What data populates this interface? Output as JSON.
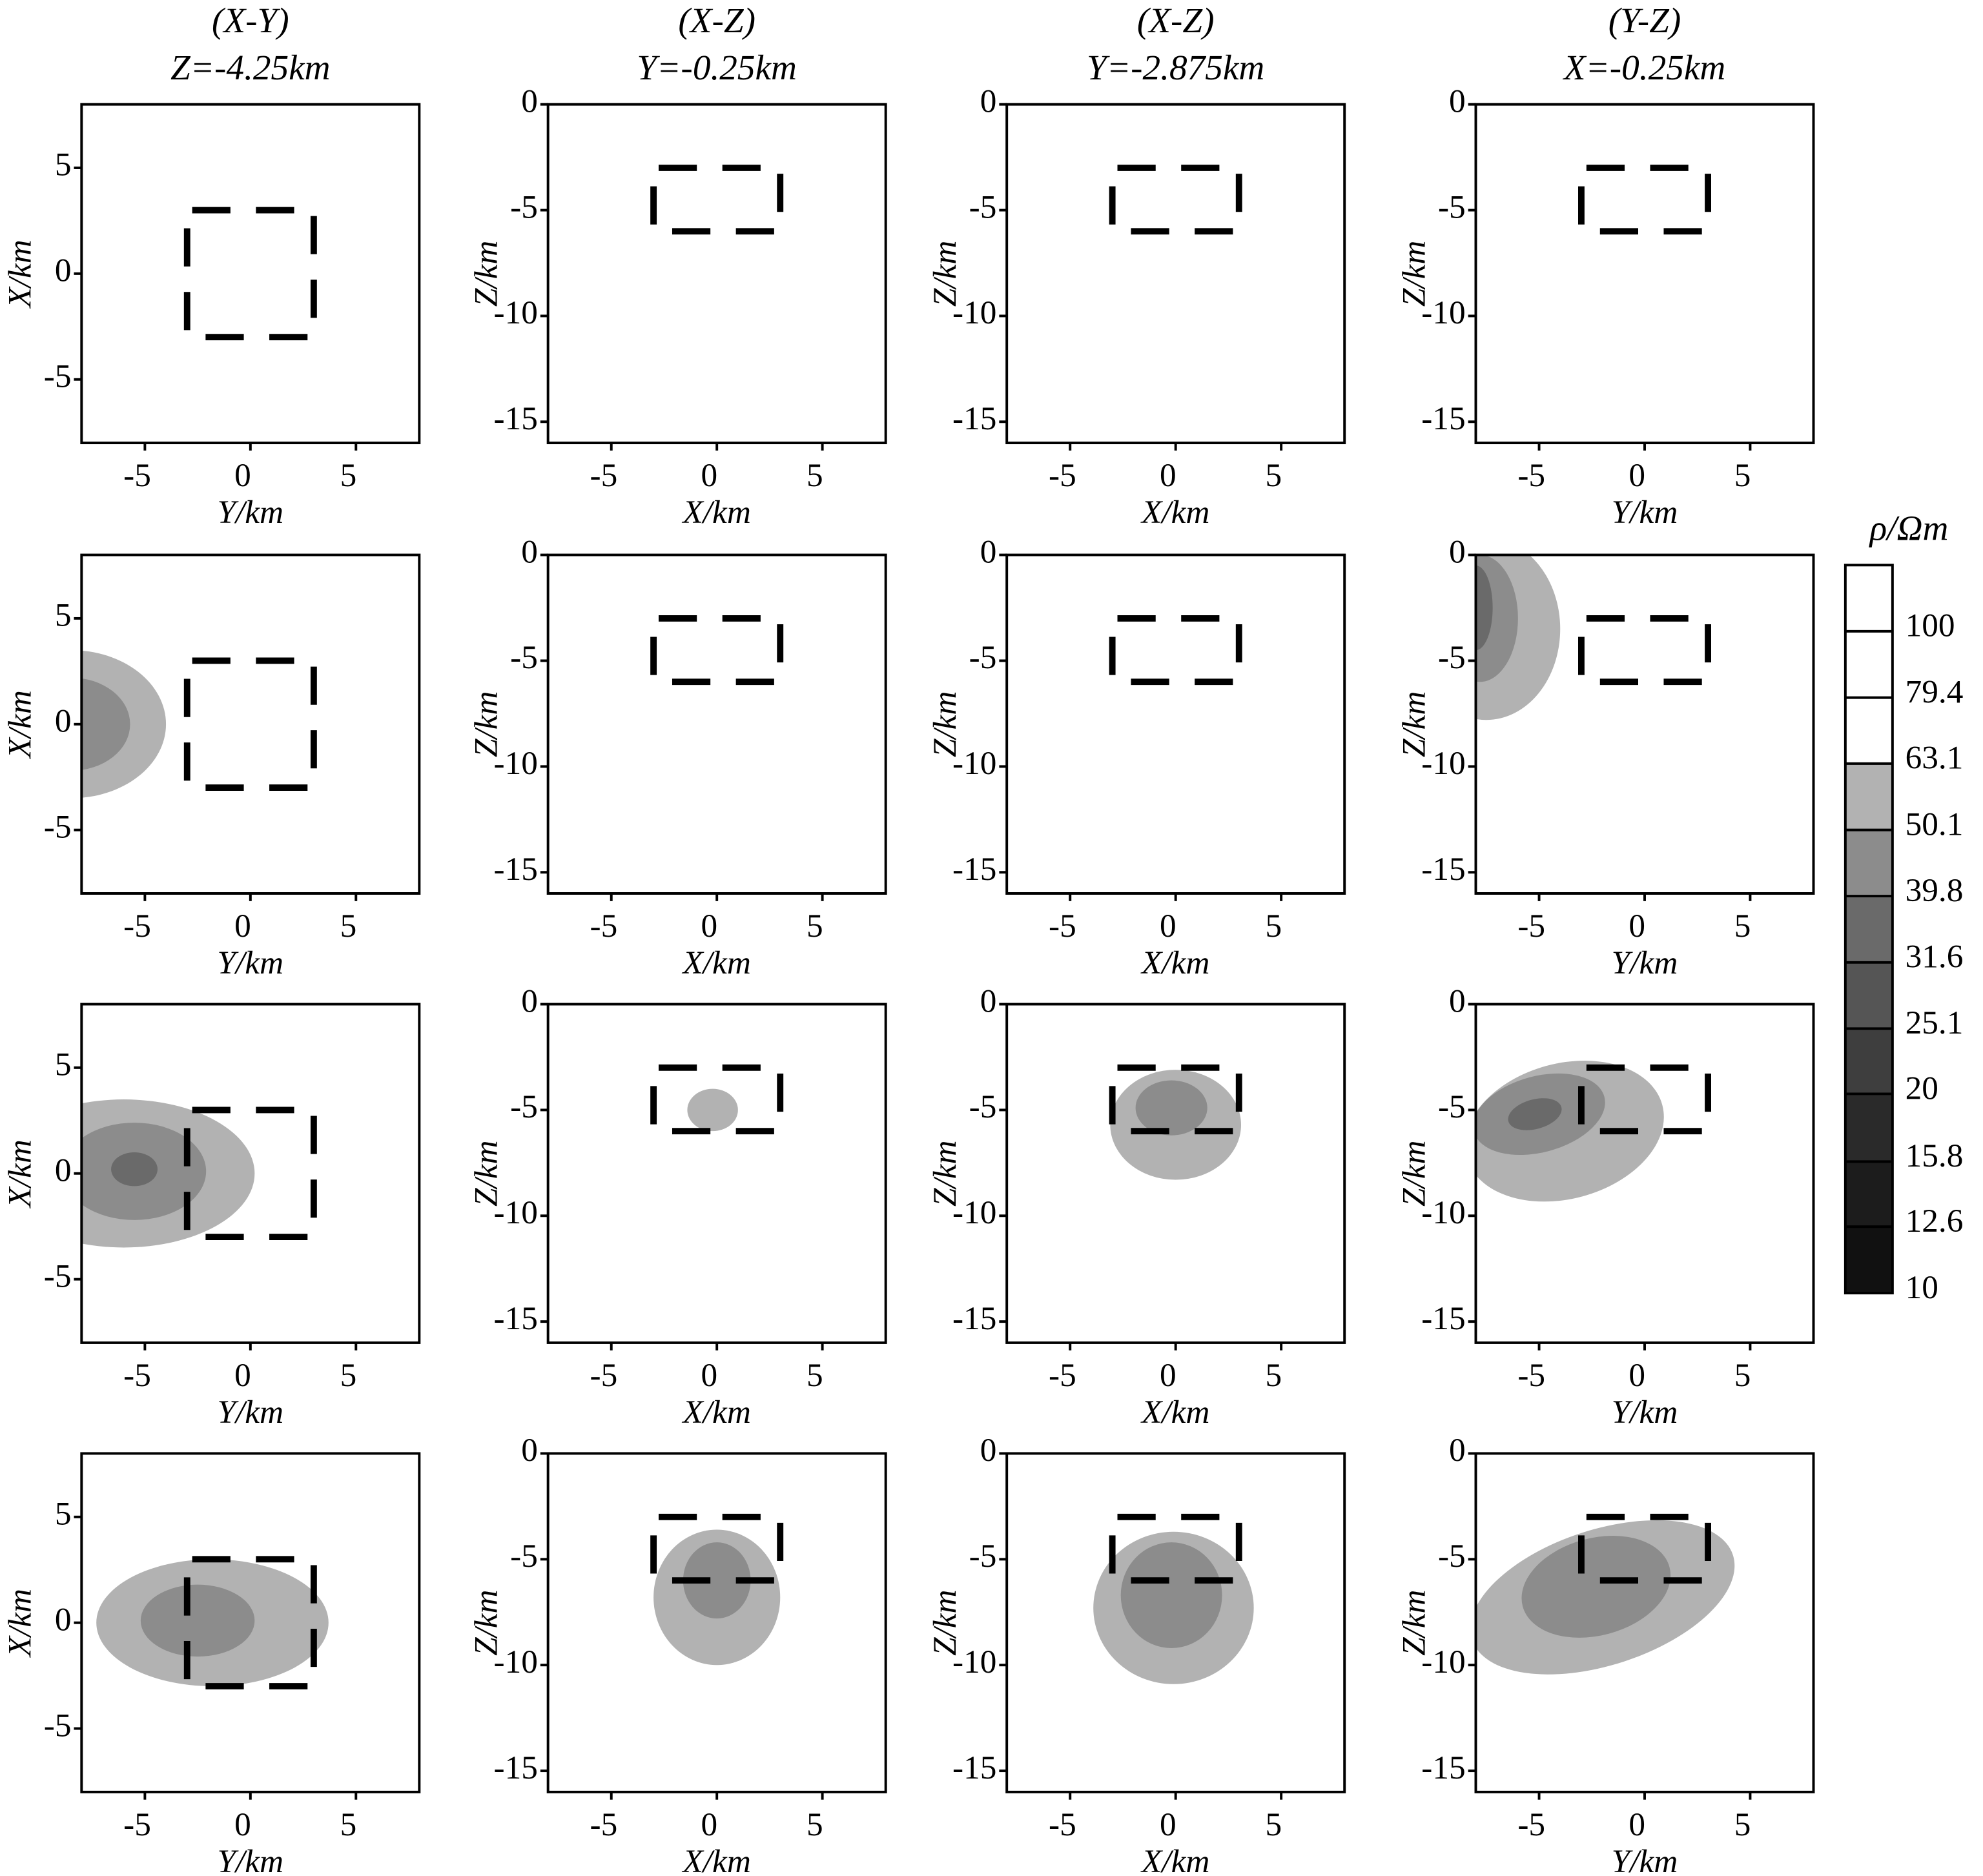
{
  "chart_data": [
    {
      "type": "contour",
      "title": "(X-Y)",
      "subtitle": "Z=-4.25km",
      "xlabel": "Y/km",
      "ylabel": "X/km",
      "xlim": [
        -8,
        8
      ],
      "ylim": [
        -8,
        8
      ],
      "xticks": [
        -5,
        0,
        5
      ],
      "yticks": [
        -5,
        0,
        5
      ],
      "outline": {
        "x": [
          -3,
          3
        ],
        "y": [
          -3,
          3
        ]
      },
      "contours": []
    },
    {
      "type": "contour",
      "title": "(X-Z)",
      "subtitle": "Y=-0.25km",
      "xlabel": "X/km",
      "ylabel": "Z/km",
      "xlim": [
        -8,
        8
      ],
      "ylim": [
        -16,
        0
      ],
      "xticks": [
        -5,
        0,
        5
      ],
      "yticks": [
        -15,
        -10,
        -5,
        0
      ],
      "outline": {
        "x": [
          -3,
          3
        ],
        "y": [
          -6,
          -3
        ]
      },
      "contours": []
    },
    {
      "type": "contour",
      "title": "(X-Z)",
      "subtitle": "Y=-2.875km",
      "xlabel": "X/km",
      "ylabel": "Z/km",
      "xlim": [
        -8,
        8
      ],
      "ylim": [
        -16,
        0
      ],
      "xticks": [
        -5,
        0,
        5
      ],
      "yticks": [
        -15,
        -10,
        -5,
        0
      ],
      "outline": {
        "x": [
          -3,
          3
        ],
        "y": [
          -6,
          -3
        ]
      },
      "contours": []
    },
    {
      "type": "contour",
      "title": "(Y-Z)",
      "subtitle": "X=-0.25km",
      "xlabel": "Y/km",
      "ylabel": "Z/km",
      "xlim": [
        -8,
        8
      ],
      "ylim": [
        -16,
        0
      ],
      "xticks": [
        -5,
        0,
        5
      ],
      "yticks": [
        -15,
        -10,
        -5,
        0
      ],
      "outline": {
        "x": [
          -3,
          3
        ],
        "y": [
          -6,
          -3
        ]
      },
      "contours": []
    },
    {
      "type": "contour",
      "xlabel": "Y/km",
      "ylabel": "X/km",
      "xlim": [
        -8,
        8
      ],
      "ylim": [
        -8,
        8
      ],
      "xticks": [
        -5,
        0,
        5
      ],
      "yticks": [
        -5,
        0,
        5
      ],
      "outline": {
        "x": [
          -3,
          3
        ],
        "y": [
          -3,
          3
        ]
      },
      "contours": [
        {
          "level": 63.1,
          "center": [
            -8.5,
            0
          ],
          "radii": [
            4.5,
            3.5
          ],
          "angle": 0
        },
        {
          "level": 50.1,
          "center": [
            -8.5,
            0
          ],
          "radii": [
            2.8,
            2.2
          ],
          "angle": 0
        }
      ]
    },
    {
      "type": "contour",
      "xlabel": "X/km",
      "ylabel": "Z/km",
      "xlim": [
        -8,
        8
      ],
      "ylim": [
        -16,
        0
      ],
      "xticks": [
        -5,
        0,
        5
      ],
      "yticks": [
        -15,
        -10,
        -5,
        0
      ],
      "outline": {
        "x": [
          -3,
          3
        ],
        "y": [
          -6,
          -3
        ]
      },
      "contours": []
    },
    {
      "type": "contour",
      "xlabel": "X/km",
      "ylabel": "Z/km",
      "xlim": [
        -8,
        8
      ],
      "ylim": [
        -16,
        0
      ],
      "xticks": [
        -5,
        0,
        5
      ],
      "yticks": [
        -15,
        -10,
        -5,
        0
      ],
      "outline": {
        "x": [
          -3,
          3
        ],
        "y": [
          -6,
          -3
        ]
      },
      "contours": []
    },
    {
      "type": "contour",
      "xlabel": "Y/km",
      "ylabel": "Z/km",
      "xlim": [
        -8,
        8
      ],
      "ylim": [
        -16,
        0
      ],
      "xticks": [
        -5,
        0,
        5
      ],
      "yticks": [
        -15,
        -10,
        -5,
        0
      ],
      "outline": {
        "x": [
          -3,
          3
        ],
        "y": [
          -6,
          -3
        ]
      },
      "contours": [
        {
          "level": 63.1,
          "center": [
            -7.5,
            -3.5
          ],
          "radii": [
            3.5,
            4.3
          ],
          "angle": 0
        },
        {
          "level": 50.1,
          "center": [
            -7.8,
            -3
          ],
          "radii": [
            1.8,
            3
          ],
          "angle": 0
        },
        {
          "level": 39.8,
          "center": [
            -8,
            -2.5
          ],
          "radii": [
            0.8,
            2
          ],
          "angle": 0
        }
      ]
    },
    {
      "type": "contour",
      "xlabel": "Y/km",
      "ylabel": "X/km",
      "xlim": [
        -8,
        8
      ],
      "ylim": [
        -8,
        8
      ],
      "xticks": [
        -5,
        0,
        5
      ],
      "yticks": [
        -5,
        0,
        5
      ],
      "outline": {
        "x": [
          -3,
          3
        ],
        "y": [
          -3,
          3
        ]
      },
      "contours": [
        {
          "level": 63.1,
          "center": [
            -6,
            0
          ],
          "radii": [
            6.2,
            3.5
          ],
          "angle": 0
        },
        {
          "level": 50.1,
          "center": [
            -5.5,
            0.1
          ],
          "radii": [
            3.4,
            2.3
          ],
          "angle": 0
        },
        {
          "level": 39.8,
          "center": [
            -5.5,
            0.2
          ],
          "radii": [
            1.1,
            0.8
          ],
          "angle": 0
        }
      ]
    },
    {
      "type": "contour",
      "xlabel": "X/km",
      "ylabel": "Z/km",
      "xlim": [
        -8,
        8
      ],
      "ylim": [
        -16,
        0
      ],
      "xticks": [
        -5,
        0,
        5
      ],
      "yticks": [
        -15,
        -10,
        -5,
        0
      ],
      "outline": {
        "x": [
          -3,
          3
        ],
        "y": [
          -6,
          -3
        ]
      },
      "contours": [
        {
          "level": 63.1,
          "center": [
            -0.2,
            -5
          ],
          "radii": [
            1.2,
            1.0
          ],
          "angle": 0
        }
      ]
    },
    {
      "type": "contour",
      "xlabel": "X/km",
      "ylabel": "Z/km",
      "xlim": [
        -8,
        8
      ],
      "ylim": [
        -16,
        0
      ],
      "xticks": [
        -5,
        0,
        5
      ],
      "yticks": [
        -15,
        -10,
        -5,
        0
      ],
      "outline": {
        "x": [
          -3,
          3
        ],
        "y": [
          -6,
          -3
        ]
      },
      "contours": [
        {
          "level": 63.1,
          "center": [
            0,
            -5.7
          ],
          "radii": [
            3.1,
            2.6
          ],
          "angle": 0
        },
        {
          "level": 50.1,
          "center": [
            -0.2,
            -4.9
          ],
          "radii": [
            1.7,
            1.3
          ],
          "angle": 0
        }
      ]
    },
    {
      "type": "contour",
      "xlabel": "Y/km",
      "ylabel": "Z/km",
      "xlim": [
        -8,
        8
      ],
      "ylim": [
        -16,
        0
      ],
      "xticks": [
        -5,
        0,
        5
      ],
      "yticks": [
        -15,
        -10,
        -5,
        0
      ],
      "outline": {
        "x": [
          -3,
          3
        ],
        "y": [
          -6,
          -3
        ]
      },
      "contours": [
        {
          "level": 63.1,
          "center": [
            -3.8,
            -6
          ],
          "radii": [
            4.8,
            3.2
          ],
          "angle": 15
        },
        {
          "level": 50.1,
          "center": [
            -5,
            -5.2
          ],
          "radii": [
            3.2,
            1.8
          ],
          "angle": 15
        },
        {
          "level": 39.8,
          "center": [
            -5.2,
            -5.2
          ],
          "radii": [
            1.3,
            0.7
          ],
          "angle": 15
        }
      ]
    },
    {
      "type": "contour",
      "xlabel": "Y/km",
      "ylabel": "X/km",
      "xlim": [
        -8,
        8
      ],
      "ylim": [
        -8,
        8
      ],
      "xticks": [
        -5,
        0,
        5
      ],
      "yticks": [
        -5,
        0,
        5
      ],
      "outline": {
        "x": [
          -3,
          3
        ],
        "y": [
          -3,
          3
        ]
      },
      "contours": [
        {
          "level": 63.1,
          "center": [
            -1.8,
            0
          ],
          "radii": [
            5.5,
            3
          ],
          "angle": 0
        },
        {
          "level": 50.1,
          "center": [
            -2.5,
            0.1
          ],
          "radii": [
            2.7,
            1.7
          ],
          "angle": 0
        }
      ]
    },
    {
      "type": "contour",
      "xlabel": "X/km",
      "ylabel": "Z/km",
      "xlim": [
        -8,
        8
      ],
      "ylim": [
        -16,
        0
      ],
      "xticks": [
        -5,
        0,
        5
      ],
      "yticks": [
        -15,
        -10,
        -5,
        0
      ],
      "outline": {
        "x": [
          -3,
          3
        ],
        "y": [
          -6,
          -3
        ]
      },
      "contours": [
        {
          "level": 63.1,
          "center": [
            0,
            -6.8
          ],
          "radii": [
            3,
            3.2
          ],
          "angle": 0
        },
        {
          "level": 50.1,
          "center": [
            0,
            -6
          ],
          "radii": [
            1.6,
            1.8
          ],
          "angle": 0
        }
      ]
    },
    {
      "type": "contour",
      "xlabel": "X/km",
      "ylabel": "Z/km",
      "xlim": [
        -8,
        8
      ],
      "ylim": [
        -16,
        0
      ],
      "xticks": [
        -5,
        0,
        5
      ],
      "yticks": [
        -15,
        -10,
        -5,
        0
      ],
      "outline": {
        "x": [
          -3,
          3
        ],
        "y": [
          -6,
          -3
        ]
      },
      "contours": [
        {
          "level": 63.1,
          "center": [
            -0.1,
            -7.3
          ],
          "radii": [
            3.8,
            3.6
          ],
          "angle": 0
        },
        {
          "level": 50.1,
          "center": [
            -0.2,
            -6.7
          ],
          "radii": [
            2.4,
            2.5
          ],
          "angle": 0
        }
      ]
    },
    {
      "type": "contour",
      "xlabel": "Y/km",
      "ylabel": "Z/km",
      "xlim": [
        -8,
        8
      ],
      "ylim": [
        -16,
        0
      ],
      "xticks": [
        -5,
        0,
        5
      ],
      "yticks": [
        -15,
        -10,
        -5,
        0
      ],
      "outline": {
        "x": [
          -3,
          3
        ],
        "y": [
          -6,
          -3
        ]
      },
      "contours": [
        {
          "level": 63.1,
          "center": [
            -2,
            -6.8
          ],
          "radii": [
            6.5,
            3.2
          ],
          "angle": 18
        },
        {
          "level": 50.1,
          "center": [
            -2.3,
            -6.3
          ],
          "radii": [
            3.6,
            2.3
          ],
          "angle": 15
        }
      ]
    }
  ],
  "colorbar": {
    "title": "ρ/Ωm",
    "scale": "log",
    "lim": [
      10,
      125.9
    ],
    "ticks": [
      10,
      12.6,
      15.8,
      20,
      25.1,
      31.6,
      39.8,
      50.1,
      63.1,
      79.4,
      100
    ],
    "colors": [
      "#111111",
      "#1c1c1c",
      "#2a2a2a",
      "#3e3e3e",
      "#555555",
      "#6a6a6a",
      "#8c8c8c",
      "#b2b2b2",
      "#ffffff",
      "#ffffff",
      "#ffffff"
    ]
  }
}
